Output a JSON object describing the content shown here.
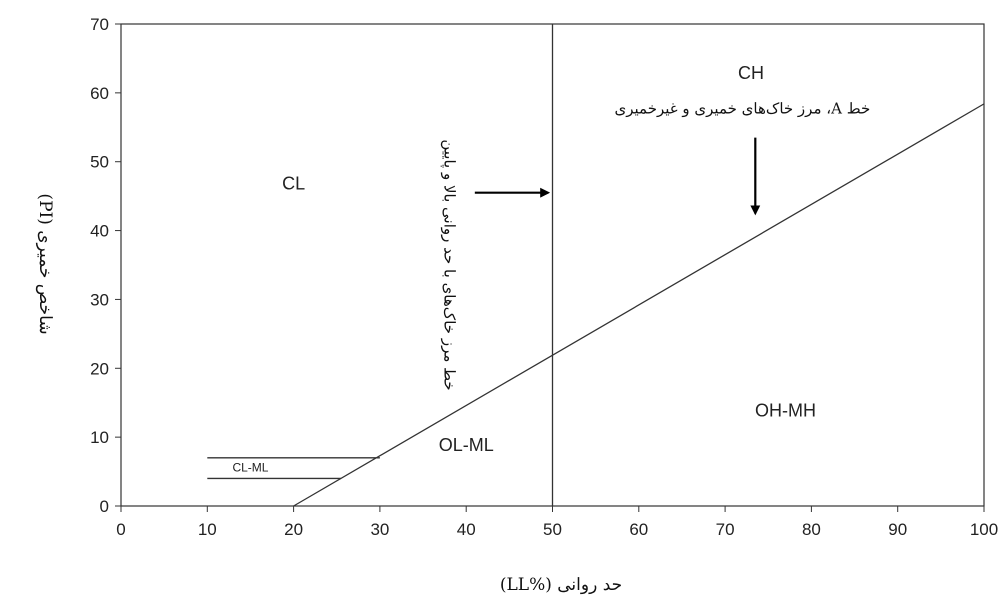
{
  "chart_data": {
    "type": "line",
    "xlabel": "حد روانی (%LL)",
    "ylabel": "شاخص خمیری (PI)",
    "xlim": [
      0,
      100
    ],
    "ylim": [
      0,
      70
    ],
    "x_ticks": [
      "0",
      "10",
      "20",
      "30",
      "40",
      "50",
      "60",
      "70",
      "80",
      "90",
      "100"
    ],
    "y_ticks": [
      "0",
      "10",
      "20",
      "30",
      "40",
      "50",
      "60",
      "70"
    ],
    "grid": false,
    "lines": {
      "a_line": {
        "x": [
          20,
          100
        ],
        "y": [
          0,
          58.4
        ]
      },
      "ll_boundary": {
        "x": [
          50,
          50
        ],
        "y": [
          0,
          70
        ]
      },
      "cl_ml_upper": {
        "x": [
          10,
          30
        ],
        "y": [
          7,
          7
        ]
      },
      "cl_ml_lower": {
        "x": [
          10,
          25.5
        ],
        "y": [
          4,
          4
        ]
      }
    },
    "regions": [
      {
        "label": "CL",
        "x": 20,
        "y": 46
      },
      {
        "label": "CH",
        "x": 73,
        "y": 62
      },
      {
        "label": "OL-ML",
        "x": 40,
        "y": 8
      },
      {
        "label": "OH-MH",
        "x": 77,
        "y": 13
      },
      {
        "label": "CL-ML",
        "x": 15,
        "y": 5
      }
    ],
    "annotations": [
      {
        "text": "خط مرز خاک‌های با حد روانی بالا و پایین",
        "x": 37.5,
        "y": 35
      },
      {
        "text": "خط A، مرز خاک‌های خمیری و غیرخمیری",
        "x": 72,
        "y": 57
      }
    ],
    "arrows": [
      {
        "x1": 41,
        "y1": 45.5,
        "x2": 49.5,
        "y2": 45.5
      },
      {
        "x1": 73.5,
        "y1": 53.5,
        "x2": 73.5,
        "y2": 42.5
      }
    ]
  }
}
